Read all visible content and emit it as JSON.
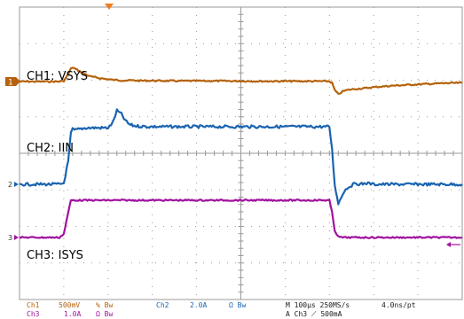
{
  "chart_data": {
    "type": "line",
    "grid": true,
    "x": [
      0,
      45,
      50,
      55,
      58,
      60,
      62,
      68,
      75,
      80,
      90,
      100,
      105,
      110,
      115,
      118,
      121,
      124,
      128,
      135,
      145,
      180,
      220,
      280,
      320,
      350,
      353,
      356,
      360,
      365,
      370,
      375,
      380,
      385,
      392,
      400,
      420,
      450,
      480,
      495,
      500
    ],
    "series": [
      {
        "name": "CH1: VSYS",
        "label": "CH1: VSYS",
        "marker": "1",
        "color": "#b5620b",
        "values": [
          0,
          0,
          0.02,
          0.25,
          0.45,
          0.5,
          0.46,
          0.36,
          0.25,
          0.18,
          0.12,
          0.08,
          0.06,
          0.05,
          0.04,
          0.04,
          0.04,
          0.04,
          0.04,
          0.03,
          0.03,
          0.02,
          0.02,
          0.01,
          0.01,
          0.01,
          -0.05,
          -0.3,
          -0.45,
          -0.35,
          -0.3,
          -0.28,
          -0.26,
          -0.25,
          -0.23,
          -0.2,
          -0.15,
          -0.1,
          -0.06,
          -0.05,
          -0.05
        ]
      },
      {
        "name": "CH2: IIN",
        "label": "CH2: IIN",
        "marker": "2",
        "color": "#1a64b0",
        "values": [
          0,
          0,
          0.05,
          1.0,
          2.2,
          2.4,
          2.35,
          2.4,
          2.45,
          2.45,
          2.45,
          2.45,
          2.65,
          3.2,
          3.05,
          2.85,
          2.7,
          2.6,
          2.55,
          2.52,
          2.5,
          2.5,
          2.5,
          2.5,
          2.5,
          2.5,
          1.5,
          0.0,
          -0.85,
          -0.4,
          -0.15,
          -0.05,
          0.05,
          0.0,
          0.05,
          0.0,
          0.0,
          0.0,
          0.0,
          0.0,
          0.0
        ]
      },
      {
        "name": "CH3: ISYS",
        "label": "CH3: ISYS",
        "marker": "3",
        "color": "#a0129e",
        "values": [
          0,
          0,
          0.1,
          0.7,
          1.05,
          1.05,
          1.05,
          1.05,
          1.05,
          1.05,
          1.05,
          1.05,
          1.05,
          1.05,
          1.05,
          1.05,
          1.05,
          1.05,
          1.05,
          1.05,
          1.05,
          1.05,
          1.05,
          1.05,
          1.05,
          1.05,
          0.7,
          0.2,
          0.02,
          0.0,
          0.0,
          0.0,
          0.0,
          0.0,
          0.0,
          0.0,
          0.0,
          0.0,
          0.0,
          0.0,
          0.0
        ]
      }
    ],
    "xlim": [
      0,
      500
    ]
  },
  "status": {
    "ch1": "Ch1",
    "ch1_scale": "500mV",
    "ch1_bw": "% Bw",
    "ch2": "Ch2",
    "ch2_scale": "2.0A",
    "ch2_bw": "Ω Bw",
    "ch3": "Ch3",
    "ch3_scale": "1.0A",
    "ch3_bw": "Ω Bw",
    "timebase": "M 100µs 250MS/s",
    "resolution": "4.0ns/pt",
    "trigger": "A  Ch3  ⟋  500mA"
  },
  "colors": {
    "grid": "#9a9a9a",
    "trigger_marker": "#f07d1e"
  }
}
